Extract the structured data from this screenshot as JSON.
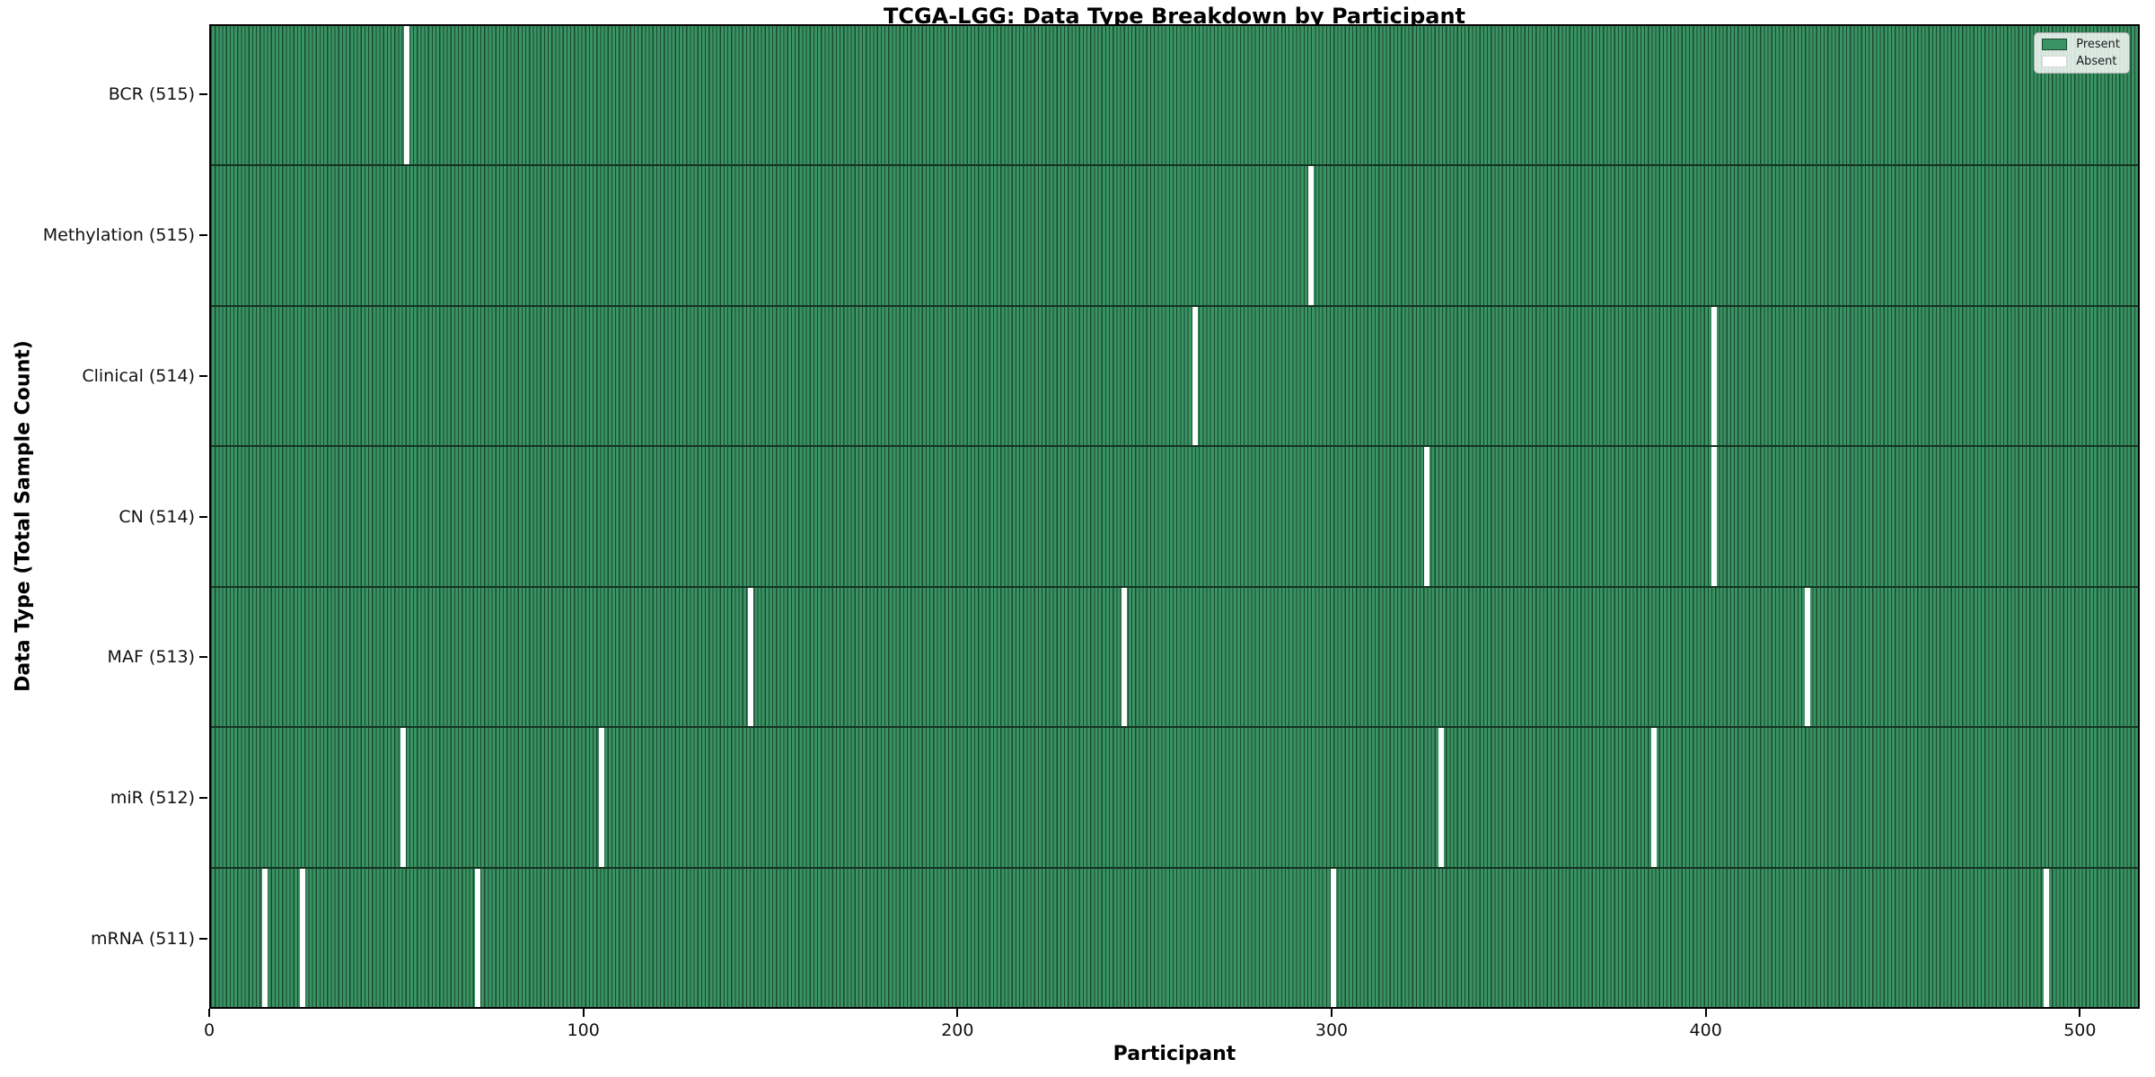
{
  "title": "TCGA-LGG: Data Type Breakdown by Participant",
  "axes": {
    "xlabel": "Participant",
    "ylabel": "Data Type (Total Sample Count)"
  },
  "legend": {
    "present_label": "Present",
    "absent_label": "Absent"
  },
  "colors": {
    "present_fill": "#3a9364",
    "present_edge": "#1a4a2e",
    "absent": "#ffffff",
    "background": "#ffffff"
  },
  "chart_data": {
    "type": "heatmap",
    "title": "TCGA-LGG: Data Type Breakdown by Participant",
    "xlabel": "Participant",
    "ylabel": "Data Type (Total Sample Count)",
    "legend_entries": [
      "Present",
      "Absent"
    ],
    "legend_position": "upper right",
    "n_participants": 516,
    "xlim": [
      0,
      516
    ],
    "x_ticks": [
      0,
      100,
      200,
      300,
      400,
      500
    ],
    "value_encoding": {
      "present": "green bar",
      "absent": "white gap"
    },
    "rows": [
      {
        "key": "bcr",
        "label": "BCR (515)",
        "data_type": "BCR",
        "present_count": 515,
        "absent_participants": [
          52
        ]
      },
      {
        "key": "methylation",
        "label": "Methylation (515)",
        "data_type": "Methylation",
        "present_count": 515,
        "absent_participants": [
          294
        ]
      },
      {
        "key": "clinical",
        "label": "Clinical (514)",
        "data_type": "Clinical",
        "present_count": 514,
        "absent_participants": [
          263,
          402
        ]
      },
      {
        "key": "cn",
        "label": "CN (514)",
        "data_type": "CN",
        "present_count": 514,
        "absent_participants": [
          325,
          402
        ]
      },
      {
        "key": "maf",
        "label": "MAF (513)",
        "data_type": "MAF",
        "present_count": 513,
        "absent_participants": [
          144,
          244,
          427
        ]
      },
      {
        "key": "mir",
        "label": "miR (512)",
        "data_type": "miR",
        "present_count": 512,
        "absent_participants": [
          51,
          104,
          329,
          386
        ]
      },
      {
        "key": "mrna",
        "label": "mRNA (511)",
        "data_type": "mRNA",
        "present_count": 511,
        "absent_participants": [
          14,
          24,
          71,
          300,
          491
        ]
      }
    ]
  }
}
